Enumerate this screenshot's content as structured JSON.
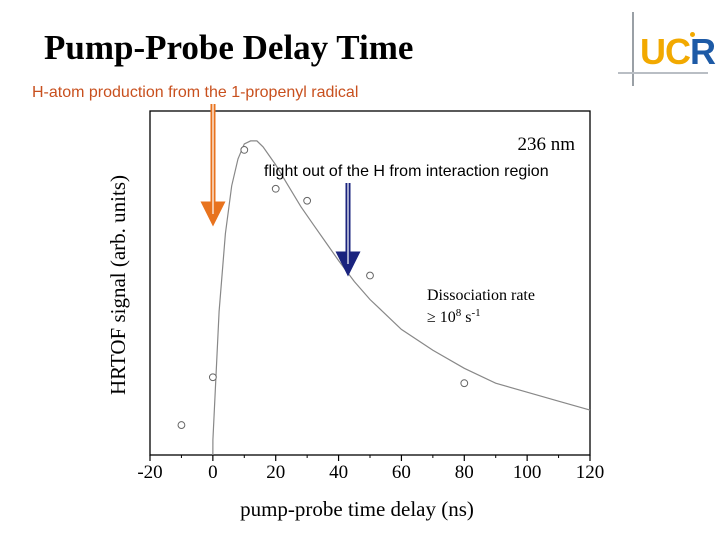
{
  "slide": {
    "title": "Pump-Probe Delay Time",
    "subtitle": "H-atom production from the 1-propenyl radical",
    "logo": {
      "letters_uc": "UC",
      "letter_r": "R"
    }
  },
  "colors": {
    "subtitle": "#c8501e",
    "pump_arrow": "#e8731e",
    "probe_arrow": "#1a237e",
    "logo_gold": "#f2a900",
    "logo_blue": "#1d5aa6",
    "marker": "#666666",
    "fit": "#888888"
  },
  "chart_data": {
    "type": "scatter",
    "title": "",
    "xlabel": "pump-probe time delay (ns)",
    "ylabel": "HRTOF signal (arb. units)",
    "xlim": [
      -20,
      120
    ],
    "ylim": [
      -0.05,
      1.1
    ],
    "xticks": [
      -20,
      0,
      20,
      40,
      60,
      80,
      100,
      120
    ],
    "y_tick_labels_shown": false,
    "grid": false,
    "series": [
      {
        "name": "data",
        "style": "open-circles",
        "x": [
          -10,
          0,
          10,
          20,
          30,
          50,
          80
        ],
        "y": [
          0.05,
          0.21,
          0.97,
          0.84,
          0.8,
          0.55,
          0.19
        ]
      },
      {
        "name": "fit",
        "style": "line",
        "x": [
          0,
          2,
          4,
          6,
          8,
          10,
          12,
          14,
          16,
          18,
          20,
          24,
          28,
          32,
          36,
          40,
          45,
          50,
          55,
          60,
          70,
          80,
          90,
          100,
          110,
          120
        ],
        "y": [
          0.0,
          0.43,
          0.69,
          0.85,
          0.94,
          0.99,
          1.0,
          1.0,
          0.98,
          0.95,
          0.92,
          0.85,
          0.78,
          0.72,
          0.66,
          0.6,
          0.53,
          0.47,
          0.42,
          0.37,
          0.3,
          0.24,
          0.19,
          0.16,
          0.13,
          0.1
        ]
      }
    ],
    "annotations": {
      "wavelength": "236 nm",
      "flight_text": "flight out of the H from interaction region",
      "rate_title": "Dissociation rate",
      "rate_value_prefix": "≥ 10",
      "rate_value_exp1": "8",
      "rate_value_mid": " s",
      "rate_value_exp2": "-1"
    }
  }
}
